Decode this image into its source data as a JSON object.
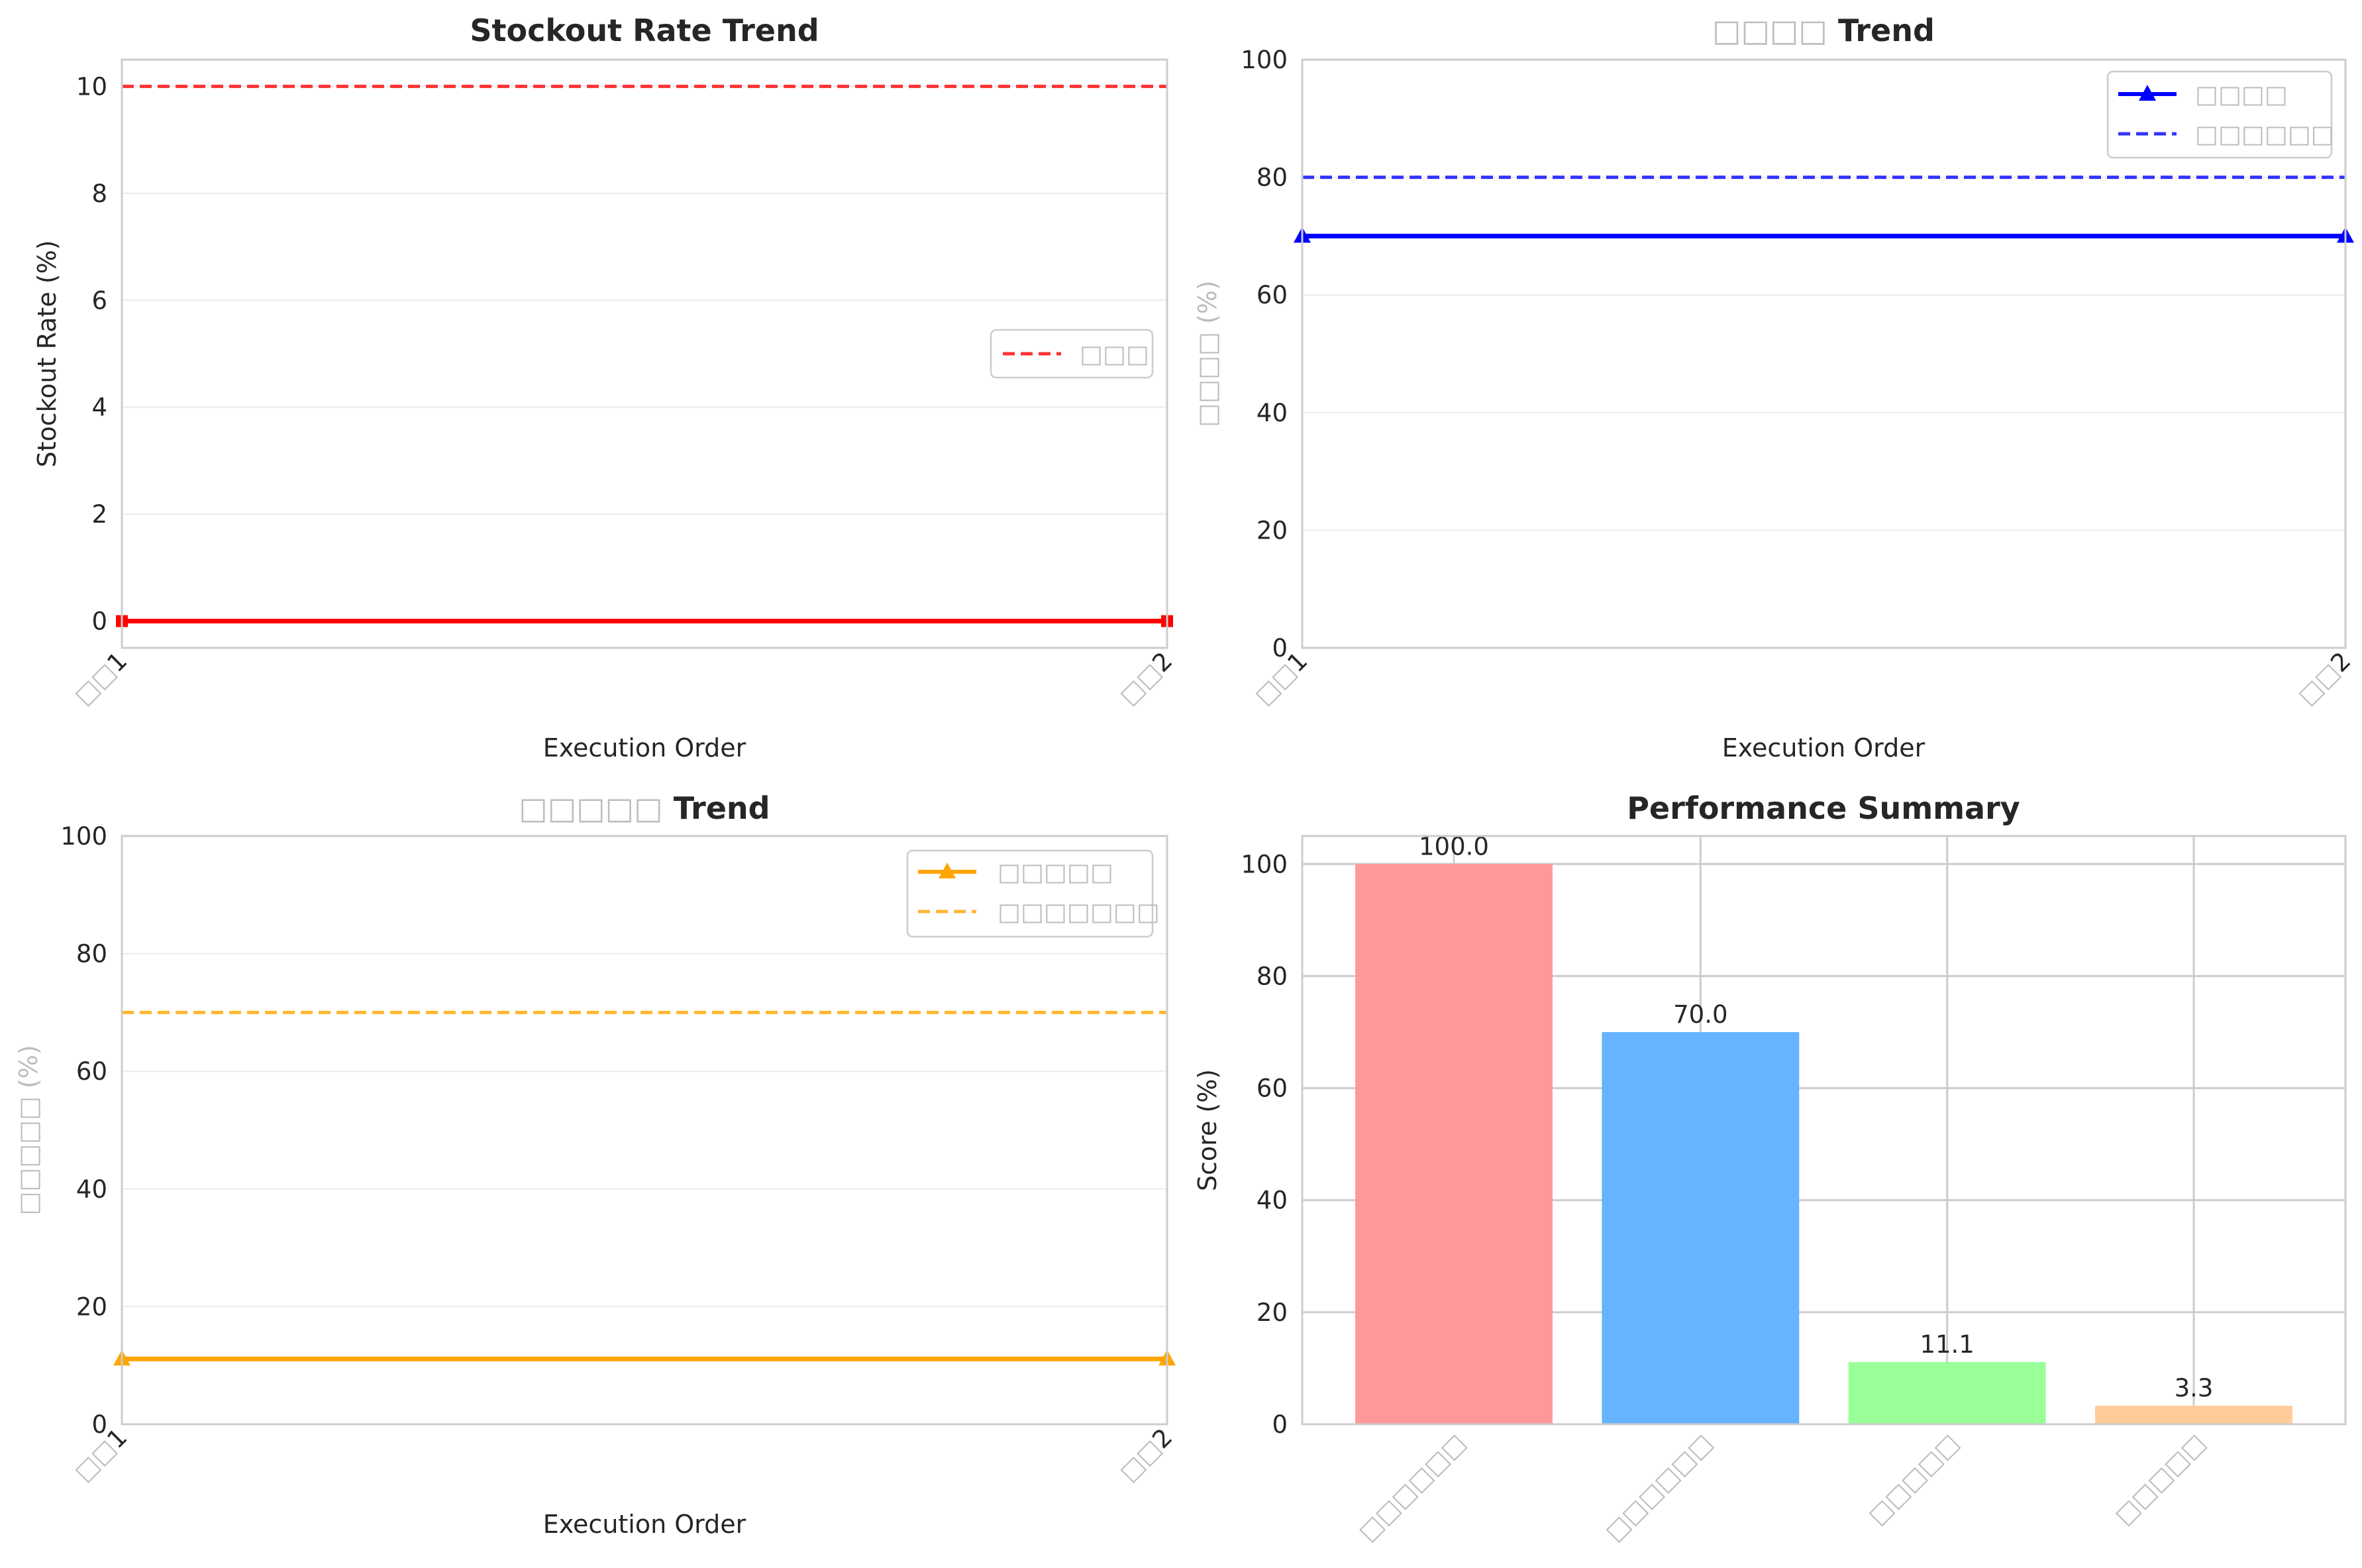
{
  "chart_data": [
    {
      "type": "line",
      "title_prefix": "",
      "title": "Stockout Rate Trend",
      "xlabel": "Execution Order",
      "ylabel": "Stockout Rate (%)",
      "categories": [
        "□□1",
        "□□2"
      ],
      "ylim": [
        -0.5,
        10.5
      ],
      "yticks": [
        0,
        2,
        4,
        6,
        8,
        10
      ],
      "grid": true,
      "legend_position": "center-right",
      "series": [
        {
          "values": [
            0,
            0
          ],
          "color": "#ff0000",
          "marker": "square"
        }
      ],
      "reference_lines": [
        {
          "name": "□□□",
          "value": 10,
          "color": "#ff3333"
        }
      ]
    },
    {
      "type": "line",
      "title_prefix": "□□□□",
      "title": "Trend",
      "xlabel": "Execution Order",
      "ylabel": "□□□□ (%)",
      "categories": [
        "□□1",
        "□□2"
      ],
      "ylim": [
        0,
        100
      ],
      "yticks": [
        0,
        20,
        40,
        60,
        80,
        100
      ],
      "grid": true,
      "legend_position": "top-right",
      "series": [
        {
          "name": "□□□□",
          "values": [
            70,
            70
          ],
          "color": "#0000ff",
          "marker": "triangle"
        }
      ],
      "reference_lines": [
        {
          "name": "□□□□□□",
          "value": 80,
          "color": "#3333ff"
        }
      ]
    },
    {
      "type": "line",
      "title_prefix": "□□□□□",
      "title": "Trend",
      "xlabel": "Execution Order",
      "ylabel": "□□□□□ (%)",
      "categories": [
        "□□1",
        "□□2"
      ],
      "ylim": [
        0,
        100
      ],
      "yticks": [
        0,
        20,
        40,
        60,
        80,
        100
      ],
      "grid": true,
      "legend_position": "top-right",
      "series": [
        {
          "name": "□□□□□",
          "values": [
            11.1,
            11.1
          ],
          "color": "#ffa500",
          "marker": "triangle"
        }
      ],
      "reference_lines": [
        {
          "name": "□□□□□□□",
          "value": 70,
          "color": "#ffb733"
        }
      ]
    },
    {
      "type": "bar",
      "title": "Performance Summary",
      "xlabel": "",
      "ylabel": "Score (%)",
      "categories": [
        "□□□□□□",
        "□□□□□□",
        "□□□□□",
        "□□□□□"
      ],
      "values": [
        100.0,
        70.0,
        11.1,
        3.3
      ],
      "value_labels": [
        "100.0",
        "70.0",
        "11.1",
        "3.3"
      ],
      "colors": [
        "#ff9999",
        "#66b3ff",
        "#99ff99",
        "#ffcc99"
      ],
      "ylim": [
        0,
        105
      ],
      "yticks": [
        0,
        20,
        40,
        60,
        80,
        100
      ],
      "grid": true
    }
  ]
}
